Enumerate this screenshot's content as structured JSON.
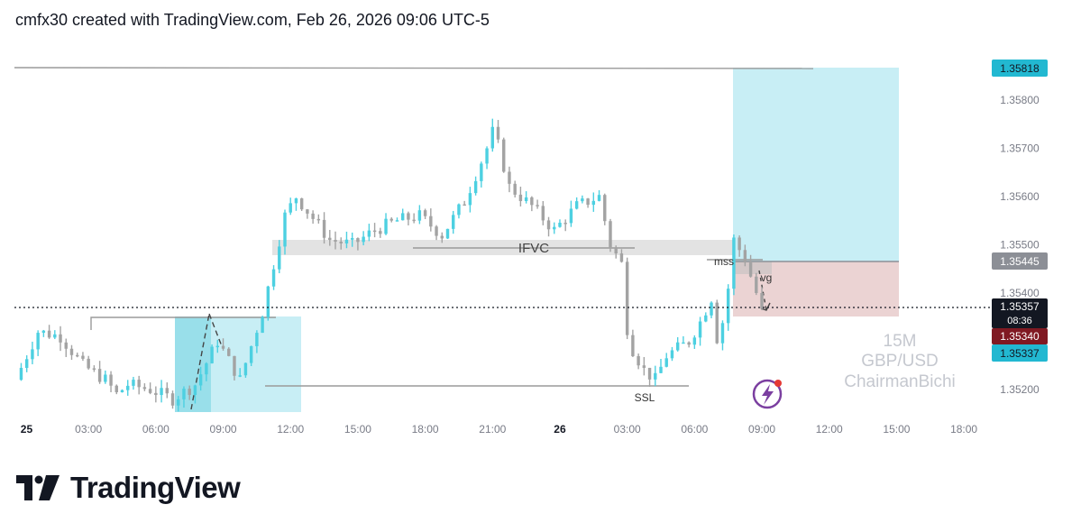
{
  "caption": "cmfx30 created with TradingView.com, Feb 26, 2026 09:06 UTC-5",
  "brand": {
    "name": "TradingView",
    "logo_icon": "tradingview-logo-icon"
  },
  "watermark": {
    "timeframe": "15M",
    "symbol": "GBP/USD",
    "author": "ChairmanBichi"
  },
  "annotations": {
    "ifvc": "IFVC",
    "mss": "mss",
    "fvg": "vg",
    "ssl": "SSL"
  },
  "price_labels": {
    "target": {
      "text": "1.35818",
      "color": "#22b8d1"
    },
    "entry": {
      "text": "1.35445",
      "color": "#8c8f96"
    },
    "current": {
      "text": "1.35357",
      "countdown": "08:36",
      "color": "#131722"
    },
    "stop_lower": {
      "text": "1.35340",
      "color": "#801922"
    },
    "cyan_lower": {
      "text": "1.35337",
      "color": "#22b8d1"
    }
  },
  "colors": {
    "bull": "#4dd0e1",
    "bear": "#a3a3a3",
    "profit_zone": "#c8eef5",
    "loss_zone": "#ebd3d3",
    "fvg_zone": "#99dfea"
  },
  "chart_data": {
    "type": "candlestick",
    "symbol": "GBP/USD",
    "timeframe": "15M",
    "ylim": [
      1.35155,
      1.35925
    ],
    "y_ticks": [
      1.358,
      1.357,
      1.356,
      1.355,
      1.354,
      1.352
    ],
    "y_tick_labels": [
      "1.35800",
      "1.35700",
      "1.35600",
      "1.35500",
      "1.35400",
      "1.35200"
    ],
    "x_ticks": [
      "25",
      "03:00",
      "06:00",
      "09:00",
      "12:00",
      "15:00",
      "18:00",
      "21:00",
      "26",
      "03:00",
      "06:00",
      "09:00",
      "12:00",
      "15:00",
      "18:00"
    ],
    "x_tick_hours": [
      0,
      3,
      6,
      9,
      12,
      15,
      18,
      21,
      24,
      27,
      30,
      33,
      36,
      39,
      42
    ],
    "x_range_hours": [
      -0.3,
      43.0
    ],
    "ohlc_waypoints": [
      [
        0.0,
        1.3522
      ],
      [
        1.0,
        1.3532
      ],
      [
        2.0,
        1.3531
      ],
      [
        3.0,
        1.3525
      ],
      [
        4.0,
        1.3522
      ],
      [
        4.5,
        1.3519
      ],
      [
        5.0,
        1.3521
      ],
      [
        6.0,
        1.352
      ],
      [
        7.0,
        1.3518
      ],
      [
        8.0,
        1.3521
      ],
      [
        9.0,
        1.353
      ],
      [
        10.0,
        1.3522
      ],
      [
        11.0,
        1.3536
      ],
      [
        12.0,
        1.3556
      ],
      [
        12.5,
        1.356
      ],
      [
        13.0,
        1.3557
      ],
      [
        14.0,
        1.3551
      ],
      [
        15.0,
        1.355
      ],
      [
        16.0,
        1.3553
      ],
      [
        17.0,
        1.3555
      ],
      [
        18.0,
        1.3556
      ],
      [
        19.0,
        1.3552
      ],
      [
        20.0,
        1.3559
      ],
      [
        21.0,
        1.357
      ],
      [
        21.3,
        1.3574
      ],
      [
        22.0,
        1.3562
      ],
      [
        23.0,
        1.3558
      ],
      [
        24.0,
        1.3553
      ],
      [
        25.0,
        1.3558
      ],
      [
        26.0,
        1.356
      ],
      [
        26.5,
        1.355
      ],
      [
        27.0,
        1.3546
      ],
      [
        27.3,
        1.353
      ],
      [
        28.0,
        1.3524
      ],
      [
        28.5,
        1.3522
      ],
      [
        29.0,
        1.3527
      ],
      [
        30.0,
        1.353
      ],
      [
        30.5,
        1.3534
      ],
      [
        31.0,
        1.3539
      ],
      [
        31.3,
        1.3529
      ],
      [
        31.7,
        1.3539
      ],
      [
        32.0,
        1.3551
      ],
      [
        32.5,
        1.3547
      ],
      [
        33.0,
        1.354
      ],
      [
        33.2,
        1.3536
      ]
    ]
  }
}
